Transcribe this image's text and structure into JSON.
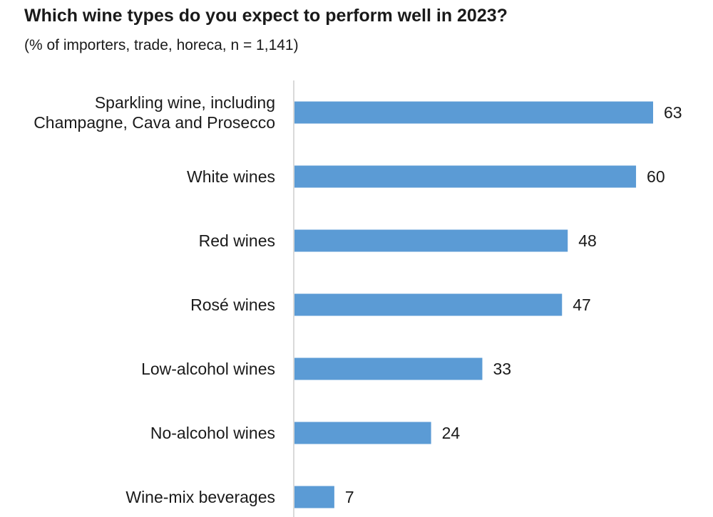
{
  "chart_data": {
    "type": "bar",
    "orientation": "horizontal",
    "title": "Which wine types do you expect to perform well in 2023?",
    "subtitle": "(% of importers, trade, horeca, n = 1,141)",
    "categories": [
      [
        "Sparkling wine, including",
        "Champagne, Cava and Prosecco"
      ],
      [
        "White wines"
      ],
      [
        "Red wines"
      ],
      [
        "Rosé wines"
      ],
      [
        "Low-alcohol wines"
      ],
      [
        "No-alcohol wines"
      ],
      [
        "Wine-mix beverages"
      ]
    ],
    "values": [
      63,
      60,
      48,
      47,
      33,
      24,
      7
    ],
    "xlim": [
      0,
      63
    ],
    "grid": false,
    "legend": "none",
    "data_labels": true,
    "bar_color": "#5b9bd5",
    "axis_color": "#d9d9d9"
  }
}
